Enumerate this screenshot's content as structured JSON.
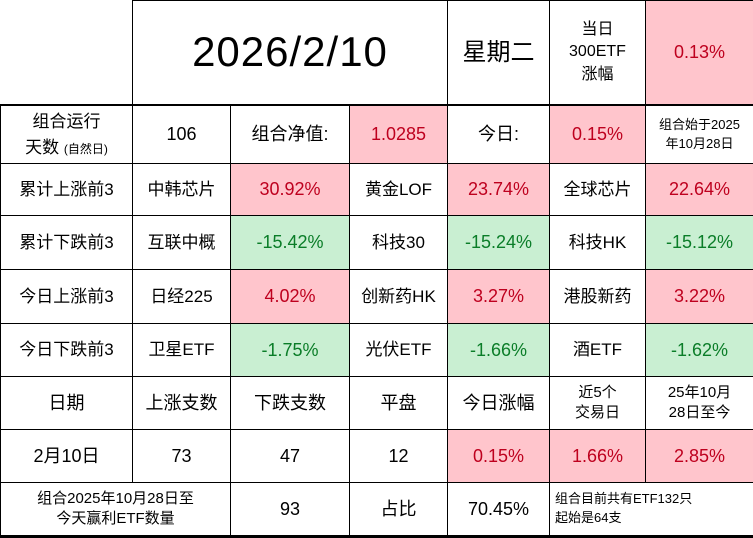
{
  "colors": {
    "pink_bg": "#FFC5CC",
    "red_text": "#BE001E",
    "green_bg": "#C9EFD2",
    "green_text": "#0A7D28",
    "border": "#000000"
  },
  "title_row": {
    "date": "2026/2/10",
    "weekday": "星期二",
    "etf300_label": "当日\n300ETF\n涨幅",
    "etf300_change": "0.13%"
  },
  "summary_row": {
    "run_days_line1": "组合运行",
    "run_days_line2": "天数",
    "run_days_note": "(自然日)",
    "run_days_value": "106",
    "nav_label": "组合净值:",
    "nav_value": "1.0285",
    "today_label": "今日:",
    "today_value": "0.15%",
    "start_note": "组合始于2025\n年10月28日"
  },
  "rank_rows": [
    {
      "label": "累计上涨前3",
      "trend": "up",
      "items": [
        {
          "name": "中韩芯片",
          "value": "30.92%"
        },
        {
          "name": "黄金LOF",
          "value": "23.74%"
        },
        {
          "name": "全球芯片",
          "value": "22.64%"
        }
      ]
    },
    {
      "label": "累计下跌前3",
      "trend": "down",
      "items": [
        {
          "name": "互联中概",
          "value": "-15.42%"
        },
        {
          "name": "科技30",
          "value": "-15.24%"
        },
        {
          "name": "科技HK",
          "value": "-15.12%"
        }
      ]
    },
    {
      "label": "今日上涨前3",
      "trend": "up",
      "items": [
        {
          "name": "日经225",
          "value": "4.02%"
        },
        {
          "name": "创新药HK",
          "value": "3.27%"
        },
        {
          "name": "港股新药",
          "value": "3.22%"
        }
      ]
    },
    {
      "label": "今日下跌前3",
      "trend": "down",
      "items": [
        {
          "name": "卫星ETF",
          "value": "-1.75%"
        },
        {
          "name": "光伏ETF",
          "value": "-1.66%"
        },
        {
          "name": "酒ETF",
          "value": "-1.62%"
        }
      ]
    }
  ],
  "stats": {
    "headers": {
      "date": "日期",
      "up_count": "上涨支数",
      "down_count": "下跌支数",
      "flat": "平盘",
      "today_change": "今日涨幅",
      "last5": "近5个\n交易日",
      "since_start": "25年10月\n28日至今"
    },
    "row": {
      "date": "2月10日",
      "up_count": "73",
      "down_count": "47",
      "flat": "12",
      "today_change": "0.15%",
      "last5": "1.66%",
      "since_start": "2.85%"
    }
  },
  "bottom_row": {
    "label": "组合2025年10月28日至\n今天赢利ETF数量",
    "win_count": "93",
    "ratio_label": "占比",
    "ratio_value": "70.45%",
    "note": "组合目前共有ETF132只\n起始是64支"
  }
}
